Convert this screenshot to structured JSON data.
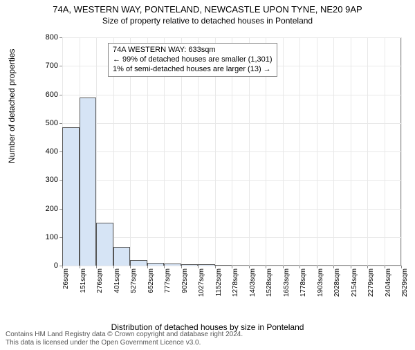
{
  "title": "74A, WESTERN WAY, PONTELAND, NEWCASTLE UPON TYNE, NE20 9AP",
  "subtitle": "Size of property relative to detached houses in Ponteland",
  "y_axis_label": "Number of detached properties",
  "x_axis_label": "Distribution of detached houses by size in Ponteland",
  "footer_line1": "Contains HM Land Registry data © Crown copyright and database right 2024.",
  "footer_line2": "This data is licensed under the Open Government Licence v3.0.",
  "chart": {
    "type": "histogram",
    "background_color": "#ffffff",
    "grid_color": "#e8e8e8",
    "axis_color": "#888888",
    "bar_fill": "#d6e4f5",
    "bar_stroke": "#555555",
    "ylim": [
      0,
      800
    ],
    "ytick_step": 100,
    "y_ticks": [
      0,
      100,
      200,
      300,
      400,
      500,
      600,
      700,
      800
    ],
    "x_ticks": [
      "26sqm",
      "151sqm",
      "276sqm",
      "401sqm",
      "527sqm",
      "652sqm",
      "777sqm",
      "902sqm",
      "1027sqm",
      "1152sqm",
      "1278sqm",
      "1403sqm",
      "1528sqm",
      "1653sqm",
      "1778sqm",
      "1903sqm",
      "2028sqm",
      "2154sqm",
      "2279sqm",
      "2404sqm",
      "2529sqm"
    ],
    "bar_values": [
      485,
      590,
      150,
      65,
      20,
      10,
      8,
      6,
      5,
      3
    ],
    "bar_width_ratio": 1.0,
    "title_fontsize": 13,
    "label_fontsize": 12,
    "tick_fontsize": 11
  },
  "info_box": {
    "line1": "74A WESTERN WAY: 633sqm",
    "line2": "← 99% of detached houses are smaller (1,301)",
    "line3": "1% of semi-detached houses are larger (13) →"
  }
}
